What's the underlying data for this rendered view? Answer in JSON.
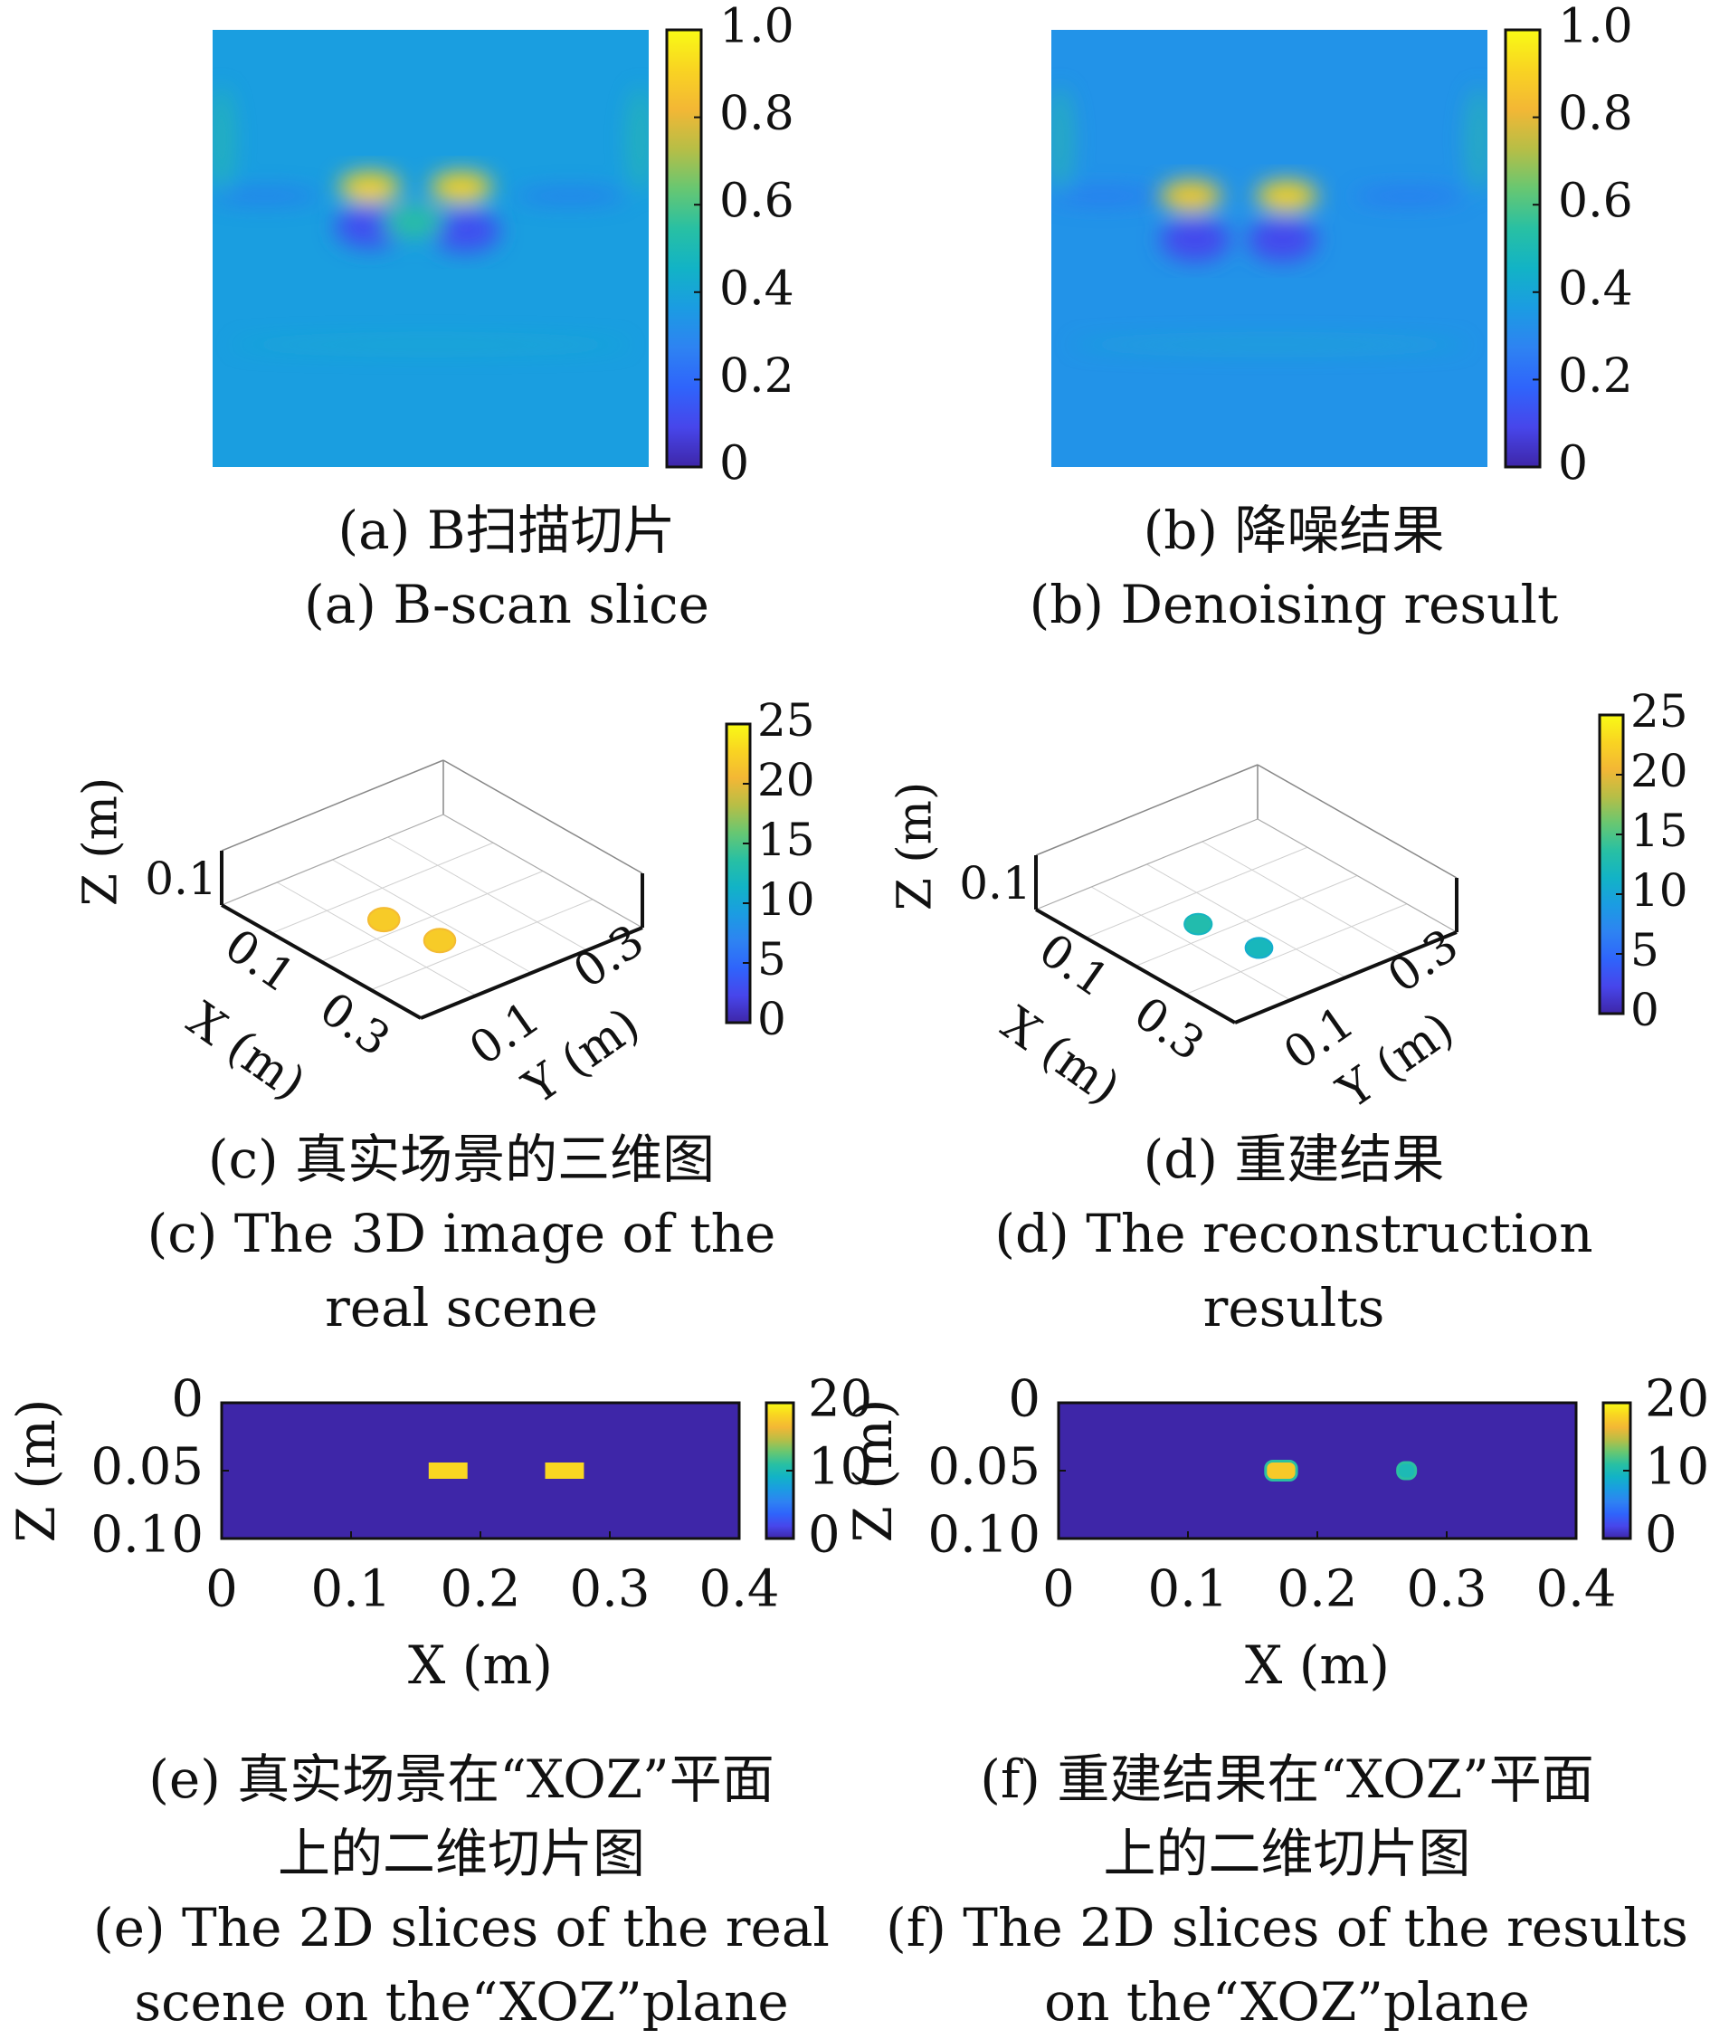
{
  "colormap": [
    "#3e26a8",
    "#4746eb",
    "#2f64fb",
    "#2e83f2",
    "#1b9ce2",
    "#12b3c6",
    "#28c0a3",
    "#67c772",
    "#b7be46",
    "#f3b735",
    "#f9d422",
    "#f9fb15"
  ],
  "captions": {
    "a": {
      "zh": "(a) B扫描切片",
      "en": "(a) B-scan slice"
    },
    "b": {
      "zh": "(b) 降噪结果",
      "en": "(b) Denoising result"
    },
    "c": {
      "zh": "(c) 真实场景的三维图",
      "en1": "(c) The 3D image of the",
      "en2": "real scene"
    },
    "d": {
      "zh": "(d) 重建结果",
      "en1": "(d) The reconstruction",
      "en2": "results"
    },
    "e": {
      "zh1": "(e) 真实场景在“XOZ”平面",
      "zh2": "上的二维切片图",
      "en1": "(e) The 2D slices of the real",
      "en2": "scene on the“XOZ”plane"
    },
    "f": {
      "zh1": "(f) 重建结果在“XOZ”平面",
      "zh2": "上的二维切片图",
      "en1": "(f) The 2D slices of the results",
      "en2": "on the“XOZ”plane"
    }
  },
  "chart_data": [
    {
      "id": "a",
      "type": "heatmap",
      "title": "",
      "xlabel": "",
      "ylabel": "",
      "colorbar": {
        "ticks": [
          "0",
          "0.2",
          "0.4",
          "0.6",
          "0.8",
          "1.0"
        ],
        "range": [
          0,
          1
        ]
      },
      "background_value": 0.37,
      "features": [
        {
          "kind": "peak",
          "x": 0.36,
          "y": 0.36,
          "value": 0.9
        },
        {
          "kind": "peak",
          "x": 0.57,
          "y": 0.36,
          "value": 0.9
        },
        {
          "kind": "trough",
          "x": 0.36,
          "y": 0.45,
          "value": 0.12
        },
        {
          "kind": "trough",
          "x": 0.58,
          "y": 0.46,
          "value": 0.12
        },
        {
          "kind": "peak",
          "x": 0.46,
          "y": 0.44,
          "value": 0.55
        }
      ]
    },
    {
      "id": "b",
      "type": "heatmap",
      "title": "",
      "xlabel": "",
      "ylabel": "",
      "colorbar": {
        "ticks": [
          "0",
          "0.2",
          "0.4",
          "0.6",
          "0.8",
          "1.0"
        ],
        "range": [
          0,
          1
        ]
      },
      "background_value": 0.33,
      "features": [
        {
          "kind": "peak",
          "x": 0.32,
          "y": 0.38,
          "value": 0.88
        },
        {
          "kind": "peak",
          "x": 0.54,
          "y": 0.38,
          "value": 0.9
        },
        {
          "kind": "trough",
          "x": 0.33,
          "y": 0.48,
          "value": 0.1
        },
        {
          "kind": "trough",
          "x": 0.53,
          "y": 0.48,
          "value": 0.1
        }
      ]
    },
    {
      "id": "c",
      "type": "scatter3d",
      "title": "",
      "axes": {
        "x": {
          "label": "X (m)",
          "ticks": [
            "0.1",
            "0.3"
          ]
        },
        "y": {
          "label": "Y (m)",
          "ticks": [
            "0.1",
            "0.3"
          ]
        },
        "z": {
          "label": "Z (m)",
          "ticks": [
            "0.1"
          ]
        }
      },
      "colorbar": {
        "ticks": [
          "0",
          "5",
          "10",
          "15",
          "20",
          "25"
        ],
        "range": [
          0,
          25
        ]
      },
      "points": [
        {
          "x": 0.17,
          "y": 0.14,
          "z": 0.05,
          "value": 22
        },
        {
          "x": 0.26,
          "y": 0.16,
          "z": 0.05,
          "value": 22
        }
      ]
    },
    {
      "id": "d",
      "type": "scatter3d",
      "title": "",
      "axes": {
        "x": {
          "label": "X (m)",
          "ticks": [
            "0.1",
            "0.3"
          ]
        },
        "y": {
          "label": "Y (m)",
          "ticks": [
            "0.1",
            "0.3"
          ]
        },
        "z": {
          "label": "Z (m)",
          "ticks": [
            "0.1"
          ]
        }
      },
      "colorbar": {
        "ticks": [
          "0",
          "5",
          "10",
          "15",
          "20",
          "25"
        ],
        "range": [
          0,
          25
        ]
      },
      "points": [
        {
          "x": 0.17,
          "y": 0.14,
          "z": 0.05,
          "value": 13
        },
        {
          "x": 0.27,
          "y": 0.16,
          "z": 0.05,
          "value": 12
        }
      ]
    },
    {
      "id": "e",
      "type": "heatmap",
      "title": "",
      "xlabel": "X (m)",
      "ylabel": "Z (m)",
      "xlim": [
        0,
        0.4
      ],
      "ylim": [
        0,
        0.1
      ],
      "xticks": [
        "0",
        "0.1",
        "0.2",
        "0.3",
        "0.4"
      ],
      "yticks": [
        "0",
        "0.05",
        "0.10"
      ],
      "colorbar": {
        "ticks": [
          "0",
          "10",
          "20"
        ],
        "range": [
          0,
          24
        ]
      },
      "background_value": 0,
      "blobs": [
        {
          "x0": 0.16,
          "x1": 0.19,
          "z0": 0.044,
          "z1": 0.056,
          "value": 22
        },
        {
          "x0": 0.25,
          "x1": 0.28,
          "z0": 0.044,
          "z1": 0.056,
          "value": 22
        }
      ]
    },
    {
      "id": "f",
      "type": "heatmap",
      "title": "",
      "xlabel": "X (m)",
      "ylabel": "Z (m)",
      "xlim": [
        0,
        0.4
      ],
      "ylim": [
        0,
        0.1
      ],
      "xticks": [
        "0",
        "0.1",
        "0.2",
        "0.3",
        "0.4"
      ],
      "yticks": [
        "0",
        "0.05",
        "0.10"
      ],
      "colorbar": {
        "ticks": [
          "0",
          "10",
          "20"
        ],
        "range": [
          0,
          24
        ]
      },
      "background_value": 0,
      "blobs": [
        {
          "x0": 0.16,
          "x1": 0.184,
          "z0": 0.043,
          "z1": 0.057,
          "value": 21
        },
        {
          "x0": 0.262,
          "x1": 0.276,
          "z0": 0.044,
          "z1": 0.056,
          "value": 12
        }
      ]
    }
  ]
}
